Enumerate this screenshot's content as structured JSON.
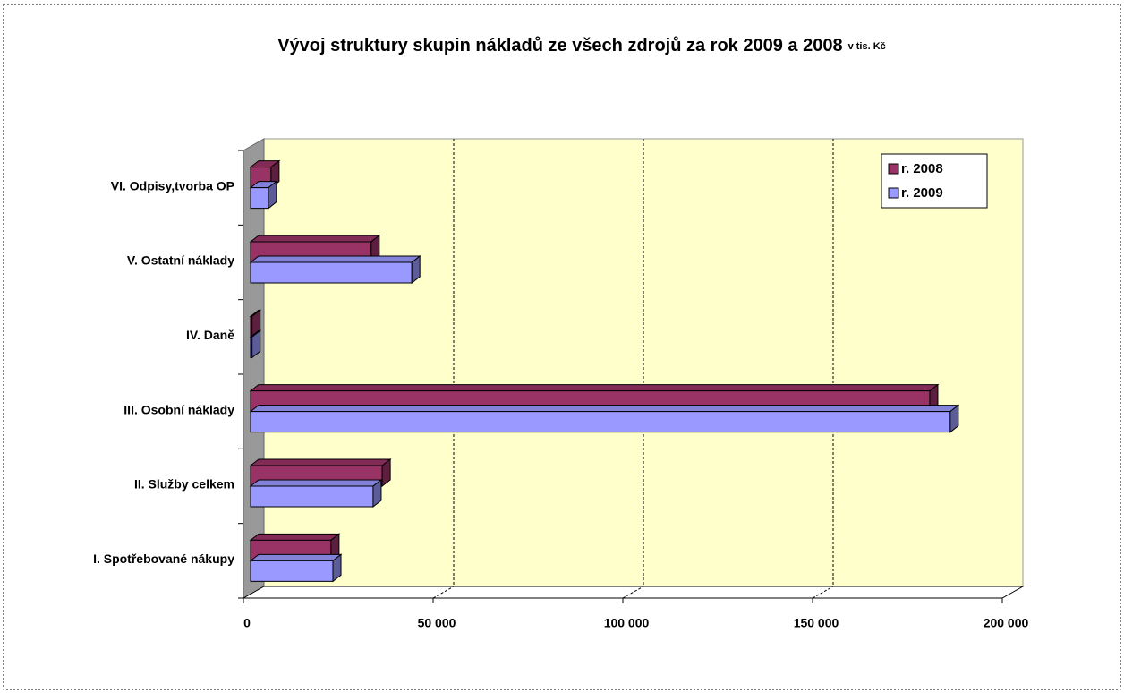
{
  "chart_data": {
    "type": "bar",
    "orientation": "horizontal",
    "3d": true,
    "title": "Vývoj struktury skupin nákladů ze všech zdrojů za rok 2009 a 2008",
    "subtitle": "v tis. Kč",
    "categories": [
      "I. Spotřebované nákupy",
      "II. Služby celkem",
      "III. Osobní náklady",
      "IV. Daně",
      "V. Ostatní náklady",
      "VI. Odpisy,tvorba OP"
    ],
    "series": [
      {
        "name": "r. 2008",
        "color": "#993366",
        "values": [
          21200,
          34700,
          179000,
          400,
          31800,
          5400
        ]
      },
      {
        "name": "r. 2009",
        "color": "#9999ff",
        "values": [
          21700,
          32300,
          184400,
          400,
          42500,
          4700
        ]
      }
    ],
    "xlim": [
      0,
      200000
    ],
    "xticks": [
      0,
      {
        "value": 50000,
        "label": "50 000"
      },
      {
        "value": 100000,
        "label": "100 000"
      },
      {
        "value": 150000,
        "label": "150 000"
      },
      {
        "value": 200000,
        "label": "200 000"
      }
    ],
    "grid": true,
    "legend": "top-right",
    "background": "#ffffcc"
  }
}
